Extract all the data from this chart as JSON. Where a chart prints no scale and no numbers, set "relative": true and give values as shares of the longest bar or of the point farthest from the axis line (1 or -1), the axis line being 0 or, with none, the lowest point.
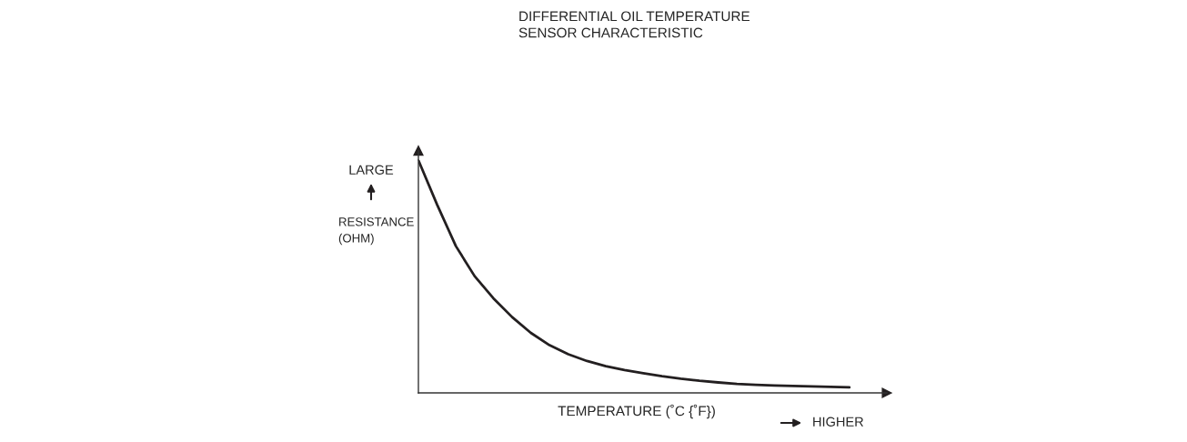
{
  "chart_data": {
    "type": "line",
    "relative": true,
    "title": "DIFFERENTIAL OIL TEMPERATURE\nSENSOR CHARACTERISTIC",
    "xlabel": "TEMPERATURE (˚C {˚F})",
    "ylabel": "RESISTANCE\n(OHM)",
    "annotations": [
      "LARGE",
      "HIGHER"
    ],
    "categories": [
      null,
      null,
      null,
      null,
      null,
      null,
      null,
      null,
      null,
      null,
      null,
      null,
      null,
      null,
      null,
      null,
      null,
      null,
      null,
      null,
      null,
      null,
      null,
      null
    ],
    "grid": false,
    "marker": "none",
    "line_style": "solid",
    "series": [
      {
        "color": "#231f20",
        "values": [
          1.0,
          0.809,
          0.631,
          0.502,
          0.407,
          0.326,
          0.258,
          0.205,
          0.166,
          0.137,
          0.115,
          0.098,
          0.085,
          0.072,
          0.061,
          0.052,
          0.045,
          0.039,
          0.035,
          0.032,
          0.03,
          0.028,
          0.026,
          0.024
        ]
      }
    ]
  }
}
